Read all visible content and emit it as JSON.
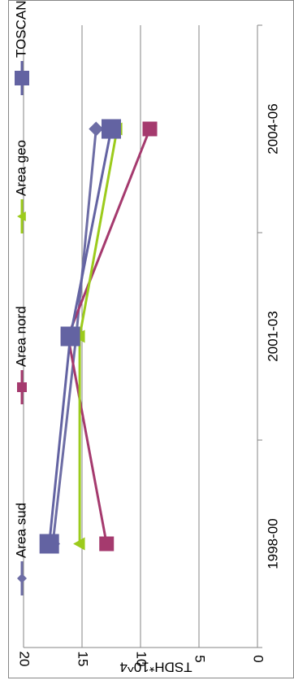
{
  "chart_data": {
    "type": "line",
    "orientation": "rotated-90-clockwise",
    "title": "",
    "xlabel": "",
    "ylabel": "TSDH*10^4",
    "categories": [
      "1998-00",
      "2001-03",
      "2004-06"
    ],
    "ylim": [
      0,
      20
    ],
    "yticks": [
      0,
      5,
      10,
      15,
      20
    ],
    "grid": true,
    "legend_position": "top",
    "series": [
      {
        "name": "Area sud",
        "values": [
          17.5,
          15.5,
          13.8
        ],
        "color": "#6D6DA5",
        "marker": "diamond"
      },
      {
        "name": "Area nord",
        "values": [
          12.9,
          16.2,
          9.2
        ],
        "color": "#A53A6E",
        "marker": "square"
      },
      {
        "name": "Area geo",
        "values": [
          15.2,
          15.2,
          12.0
        ],
        "color": "#9CCB1C",
        "marker": "triangle"
      },
      {
        "name": "TOSCANA",
        "values": [
          17.8,
          16.0,
          12.5
        ],
        "color": "#6363A2",
        "marker": "square"
      }
    ]
  }
}
